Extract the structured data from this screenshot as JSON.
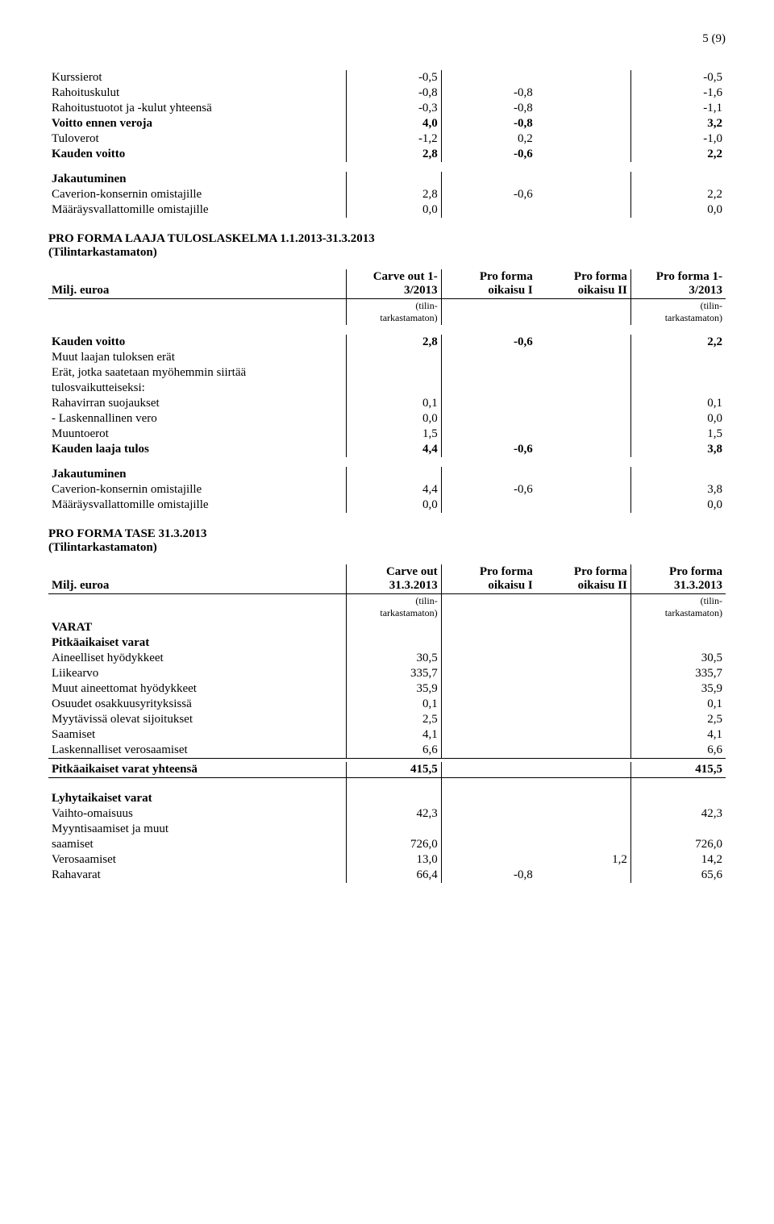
{
  "page_number": "5 (9)",
  "top_table": {
    "rows": [
      {
        "label": "Kurssierot",
        "v1": "-0,5",
        "v2": "",
        "v3": "",
        "v4": "-0,5",
        "bold": false
      },
      {
        "label": "Rahoituskulut",
        "v1": "-0,8",
        "v2": "-0,8",
        "v3": "",
        "v4": "-1,6",
        "bold": false
      },
      {
        "label": "Rahoitustuotot ja -kulut yhteensä",
        "v1": "-0,3",
        "v2": "-0,8",
        "v3": "",
        "v4": "-1,1",
        "bold": false
      },
      {
        "label": "Voitto ennen veroja",
        "v1": "4,0",
        "v2": "-0,8",
        "v3": "",
        "v4": "3,2",
        "bold": true
      },
      {
        "label": "Tuloverot",
        "v1": "-1,2",
        "v2": "0,2",
        "v3": "",
        "v4": "-1,0",
        "bold": false
      },
      {
        "label": "Kauden voitto",
        "v1": "2,8",
        "v2": "-0,6",
        "v3": "",
        "v4": "2,2",
        "bold": true
      }
    ],
    "jakautuminen_label": "Jakautuminen",
    "jak_rows": [
      {
        "label": "Caverion-konsernin omistajille",
        "v1": "2,8",
        "v2": "-0,6",
        "v3": "",
        "v4": "2,2"
      },
      {
        "label": "Määräysvallattomille omistajille",
        "v1": "0,0",
        "v2": "",
        "v3": "",
        "v4": "0,0"
      }
    ]
  },
  "section2": {
    "title_l1": "PRO FORMA LAAJA TULOSLASKELMA 1.1.2013-31.3.2013",
    "title_l2": "(Tilintarkastamaton)",
    "header": {
      "col0": "Milj. euroa",
      "col1_l1": "Carve out 1-",
      "col1_l2": "3/2013",
      "col2_l1": "Pro forma",
      "col2_l2": "oikaisu I",
      "col3_l1": "Pro forma",
      "col3_l2": "oikaisu  II",
      "col4_l1": "Pro forma 1-",
      "col4_l2": "3/2013",
      "sub_l": "(tilin-",
      "sub_l2": "tarkastamaton)",
      "sub_r": "(tilin-",
      "sub_r2": "tarkastamaton)"
    },
    "kv": {
      "label": "Kauden voitto",
      "v1": "2,8",
      "v2": "-0,6",
      "v4": "2,2"
    },
    "sub_labels": [
      "Muut laajan tuloksen erät",
      "Erät, jotka saatetaan myöhemmin siirtää",
      "tulosvaikutteiseksi:"
    ],
    "rows": [
      {
        "label": "Rahavirran suojaukset",
        "v1": "0,1",
        "v4": "0,1"
      },
      {
        "label": "- Laskennallinen vero",
        "v1": "0,0",
        "v4": "0,0"
      },
      {
        "label": "Muuntoerot",
        "v1": "1,5",
        "v4": "1,5"
      }
    ],
    "klt": {
      "label": "Kauden laaja tulos",
      "v1": "4,4",
      "v2": "-0,6",
      "v4": "3,8"
    },
    "jak_label": "Jakautuminen",
    "jak_rows": [
      {
        "label": "Caverion-konsernin omistajille",
        "v1": "4,4",
        "v2": "-0,6",
        "v4": "3,8"
      },
      {
        "label": "Määräysvallattomille omistajille",
        "v1": "0,0",
        "v2": "",
        "v4": "0,0"
      }
    ]
  },
  "section3": {
    "title_l1": "PRO FORMA TASE 31.3.2013",
    "title_l2": "(Tilintarkastamaton)",
    "header": {
      "col0": "Milj. euroa",
      "col1_l1": "Carve out",
      "col1_l2": "31.3.2013",
      "col2_l1": "Pro forma",
      "col2_l2": "oikaisu I",
      "col3_l1": "Pro forma",
      "col3_l2": "oikaisu II",
      "col4_l1": "Pro forma",
      "col4_l2": "31.3.2013",
      "sub_l": "(tilin-",
      "sub_l2": "tarkastamaton)",
      "sub_r": "(tilin-",
      "sub_r2": "tarkastamaton)"
    },
    "varat": "VARAT",
    "pkv": "Pitkäaikaiset varat",
    "pkv_rows": [
      {
        "label": "Aineelliset hyödykkeet",
        "v1": "30,5",
        "v4": "30,5"
      },
      {
        "label": "Liikearvo",
        "v1": "335,7",
        "v4": "335,7"
      },
      {
        "label": "Muut aineettomat hyödykkeet",
        "v1": "35,9",
        "v4": "35,9"
      },
      {
        "label": "Osuudet osakkuusyrityksissä",
        "v1": "0,1",
        "v4": "0,1"
      },
      {
        "label": "Myytävissä olevat sijoitukset",
        "v1": "2,5",
        "v4": "2,5"
      },
      {
        "label": "Saamiset",
        "v1": "4,1",
        "v4": "4,1"
      },
      {
        "label": "Laskennalliset verosaamiset",
        "v1": "6,6",
        "v4": "6,6"
      }
    ],
    "pkv_total": {
      "label": "Pitkäaikaiset varat yhteensä",
      "v1": "415,5",
      "v4": "415,5"
    },
    "lyv": "Lyhytaikaiset varat",
    "lyv_rows": [
      {
        "label": "Vaihto-omaisuus",
        "v1": "42,3",
        "v2": "",
        "v3": "",
        "v4": "42,3",
        "multiline": false
      },
      {
        "label_l1": "Myyntisaamiset ja muut",
        "label_l2": "saamiset",
        "v1": "726,0",
        "v2": "",
        "v3": "",
        "v4": "726,0",
        "multiline": true
      },
      {
        "label": "Verosaamiset",
        "v1": "13,0",
        "v2": "",
        "v3": "1,2",
        "v4": "14,2",
        "multiline": false
      },
      {
        "label": "Rahavarat",
        "v1": "66,4",
        "v2": "-0,8",
        "v3": "",
        "v4": "65,6",
        "multiline": false
      }
    ]
  }
}
